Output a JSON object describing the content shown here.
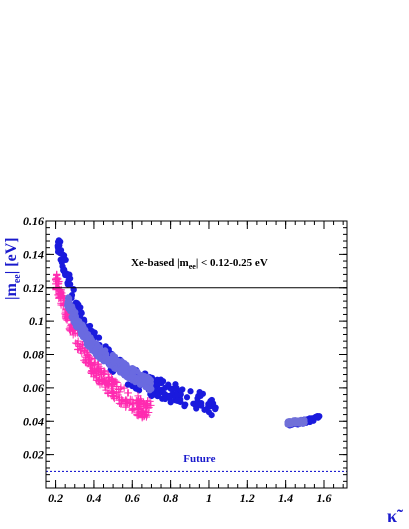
{
  "chart_data": {
    "type": "scatter",
    "ylabel": {
      "main": "|m",
      "sub": "ee",
      "tail": "| [eV]"
    },
    "xlabel": "κ̃",
    "xlim": [
      0.15,
      1.72
    ],
    "ylim": [
      0.0,
      0.16
    ],
    "xticks": [
      0.2,
      0.4,
      0.6,
      0.8,
      1,
      1.2,
      1.4,
      1.6
    ],
    "xtick_labels": [
      "0.2",
      "0.4",
      "0.6",
      "0.8",
      "1",
      "1.2",
      "1.4",
      "1.6"
    ],
    "yticks": [
      0.02,
      0.04,
      0.06,
      0.08,
      0.1,
      0.12,
      0.14,
      0.16
    ],
    "ytick_labels": [
      "0.02",
      "0.04",
      "0.06",
      "0.08",
      "0.1",
      "0.12",
      "0.14",
      "0.16"
    ],
    "hlines": [
      {
        "y": 0.12,
        "style": "solid",
        "color": "#000000"
      },
      {
        "y": 0.01,
        "style": "dotted",
        "color": "#0000cc"
      }
    ],
    "annotations": [
      {
        "pre": "Xe-based |m",
        "sub": "ee",
        "post": "| < 0.12-0.25 eV",
        "x": 0.95,
        "y": 0.133,
        "color": "#000000"
      },
      {
        "text": "Future",
        "x": 0.95,
        "y": 0.0155,
        "color": "#1a1acc"
      }
    ],
    "series": [
      {
        "marker": "circle",
        "color": "#1a1add",
        "band": [
          [
            0.21,
            0.147
          ],
          [
            0.25,
            0.132
          ],
          [
            0.3,
            0.112
          ],
          [
            0.35,
            0.097
          ],
          [
            0.4,
            0.088
          ],
          [
            0.45,
            0.081
          ],
          [
            0.5,
            0.075
          ],
          [
            0.55,
            0.07
          ],
          [
            0.6,
            0.066
          ],
          [
            0.7,
            0.061
          ],
          [
            0.8,
            0.057
          ],
          [
            0.9,
            0.054
          ],
          [
            1.0,
            0.05
          ],
          [
            1.04,
            0.048
          ]
        ],
        "spread": 0.006
      },
      {
        "marker": "plus",
        "color": "#ff2bb0",
        "band": [
          [
            0.2,
            0.125
          ],
          [
            0.25,
            0.108
          ],
          [
            0.3,
            0.092
          ],
          [
            0.35,
            0.08
          ],
          [
            0.4,
            0.072
          ],
          [
            0.45,
            0.065
          ],
          [
            0.5,
            0.06
          ],
          [
            0.55,
            0.055
          ],
          [
            0.6,
            0.051
          ],
          [
            0.65,
            0.048
          ],
          [
            0.7,
            0.046
          ]
        ],
        "spread": 0.006
      },
      {
        "marker": "circle",
        "color": "#6a6ae0",
        "band": [
          [
            0.26,
            0.113
          ],
          [
            0.3,
            0.102
          ],
          [
            0.35,
            0.092
          ],
          [
            0.4,
            0.084
          ],
          [
            0.5,
            0.076
          ],
          [
            0.6,
            0.068
          ],
          [
            0.7,
            0.062
          ]
        ],
        "spread": 0.004
      },
      {
        "marker": "circle",
        "color": "#1a1add",
        "band": [
          [
            1.42,
            0.0385
          ],
          [
            1.48,
            0.0395
          ],
          [
            1.52,
            0.0405
          ],
          [
            1.58,
            0.0425
          ]
        ],
        "spread": 0.0012
      },
      {
        "marker": "circle",
        "color": "#7070d8",
        "band": [
          [
            1.41,
            0.039
          ],
          [
            1.46,
            0.0395
          ],
          [
            1.5,
            0.04
          ]
        ],
        "spread": 0.0012
      }
    ]
  }
}
